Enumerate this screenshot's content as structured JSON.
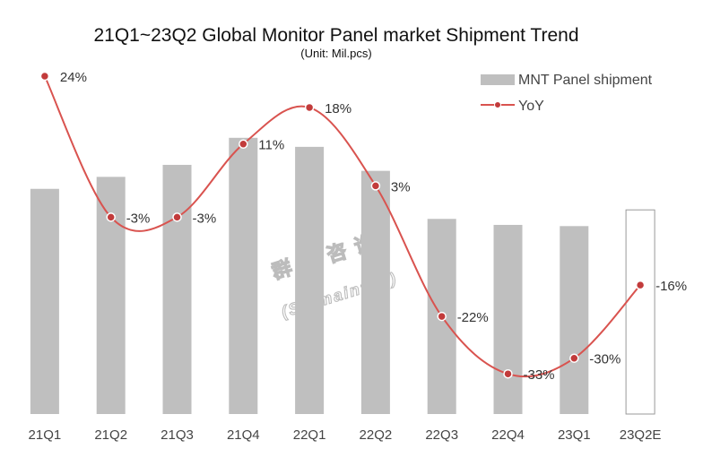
{
  "chart_data": {
    "type": "bar+line",
    "title": "21Q1~23Q2 Global Monitor Panel market Shipment Trend",
    "subtitle": "(Unit: Mil.pcs)",
    "categories": [
      "21Q1",
      "21Q2",
      "21Q3",
      "21Q4",
      "22Q1",
      "22Q2",
      "22Q3",
      "22Q4",
      "23Q1",
      "23Q2E"
    ],
    "series": [
      {
        "name": "MNT Panel shipment",
        "kind": "bar",
        "color": "#bfbfbf",
        "values": [
          37.5,
          39.5,
          41.5,
          46.0,
          44.5,
          40.5,
          32.5,
          31.5,
          31.3,
          34.0
        ],
        "forecast_index": 9
      },
      {
        "name": "YoY",
        "kind": "line",
        "color": "#d9534f",
        "marker_color": "#c23b3b",
        "values": [
          24,
          -3,
          -3,
          11,
          18,
          3,
          -22,
          -33,
          -30,
          -16
        ],
        "labels": [
          "24%",
          "-3%",
          "-3%",
          "11%",
          "18%",
          "3%",
          "-22%",
          "-33%",
          "-30%",
          "-16%"
        ]
      }
    ],
    "bar_ylim": [
      0,
      60
    ],
    "line_ylim": [
      -40,
      30
    ],
    "legend": "top-right",
    "grid": false
  },
  "watermark": {
    "line1": "群智咨询",
    "line2": "(Sigmaintell)"
  }
}
